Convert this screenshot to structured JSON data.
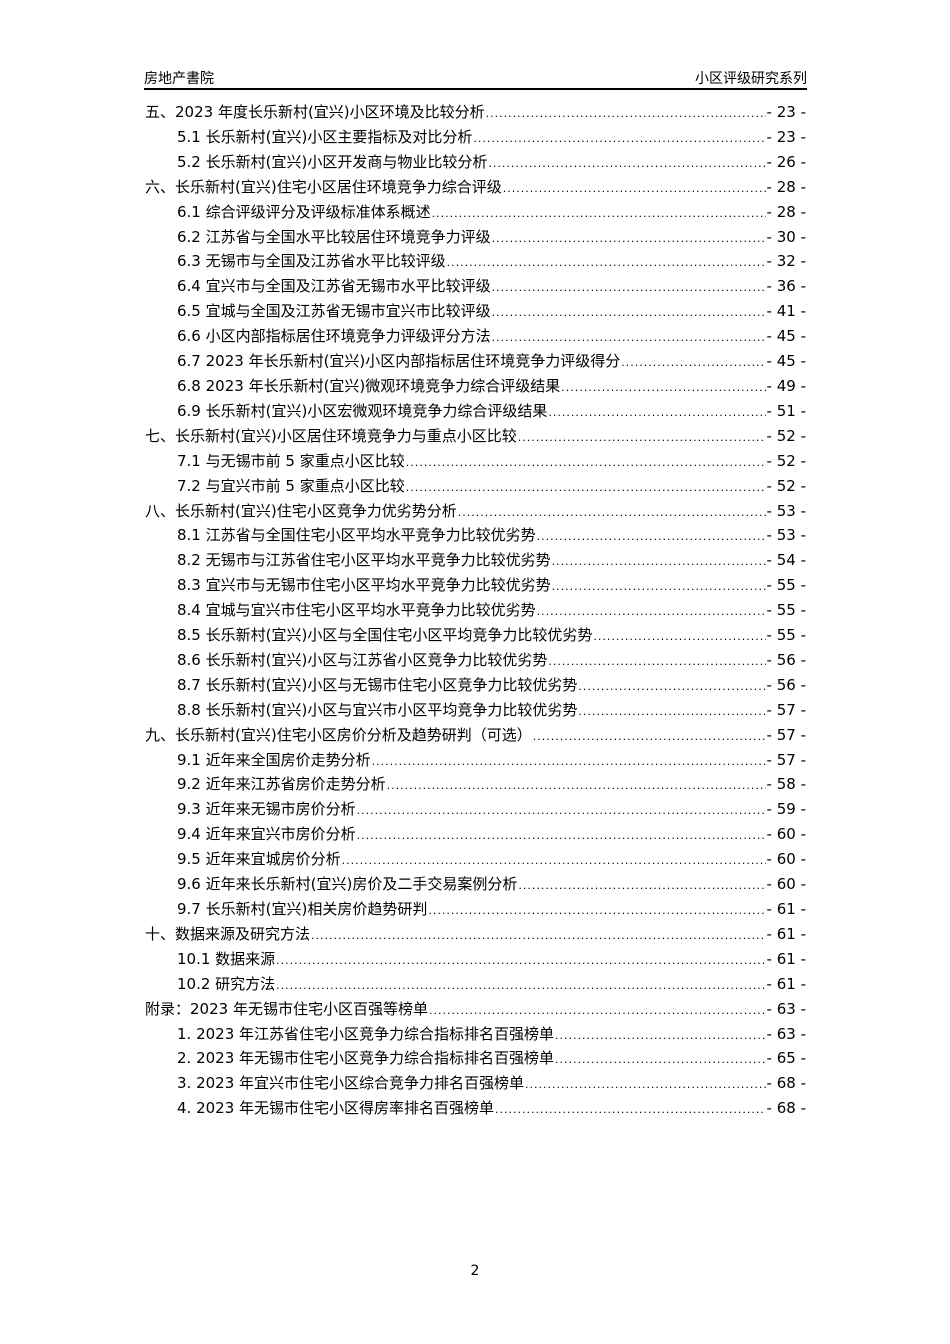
{
  "header": {
    "left": "房地产書院",
    "right": "小区评级研究系列"
  },
  "toc": [
    {
      "level": 1,
      "title": "五、2023 年度长乐新村(宜兴)小区环境及比较分析",
      "page": "- 23 -"
    },
    {
      "level": 2,
      "title": "5.1  长乐新村(宜兴)小区主要指标及对比分析",
      "page": "- 23 -"
    },
    {
      "level": 2,
      "title": "5.2  长乐新村(宜兴)小区开发商与物业比较分析",
      "page": "- 26 -"
    },
    {
      "level": 1,
      "title": "六、长乐新村(宜兴)住宅小区居住环境竞争力综合评级",
      "page": "- 28 -"
    },
    {
      "level": 2,
      "title": "6.1  综合评级评分及评级标准体系概述",
      "page": "- 28 -"
    },
    {
      "level": 2,
      "title": "6.2  江苏省与全国水平比较居住环境竞争力评级",
      "page": "- 30 -"
    },
    {
      "level": 2,
      "title": "6.3  无锡市与全国及江苏省水平比较评级",
      "page": "- 32 -"
    },
    {
      "level": 2,
      "title": "6.4  宜兴市与全国及江苏省无锡市水平比较评级",
      "page": "- 36 -"
    },
    {
      "level": 2,
      "title": "6.5  宜城与全国及江苏省无锡市宜兴市比较评级",
      "page": "- 41 -"
    },
    {
      "level": 2,
      "title": "6.6  小区内部指标居住环境竞争力评级评分方法",
      "page": "- 45 -"
    },
    {
      "level": 2,
      "title": "6.7  2023 年长乐新村(宜兴)小区内部指标居住环境竞争力评级得分",
      "page": "- 45 -"
    },
    {
      "level": 2,
      "title": "6.8  2023 年长乐新村(宜兴)微观环境竞争力综合评级结果",
      "page": "- 49 -"
    },
    {
      "level": 2,
      "title": "6.9  长乐新村(宜兴)小区宏微观环境竞争力综合评级结果",
      "page": "- 51 -"
    },
    {
      "level": 1,
      "title": "七、长乐新村(宜兴)小区居住环境竞争力与重点小区比较",
      "page": "- 52 -"
    },
    {
      "level": 2,
      "title": "7.1  与无锡市前 5 家重点小区比较",
      "page": "- 52 -"
    },
    {
      "level": 2,
      "title": "7.2  与宜兴市前 5 家重点小区比较",
      "page": "- 52 -"
    },
    {
      "level": 1,
      "title": "八、长乐新村(宜兴)住宅小区竞争力优劣势分析",
      "page": "- 53 -"
    },
    {
      "level": 2,
      "title": "8.1  江苏省与全国住宅小区平均水平竞争力比较优劣势",
      "page": "- 53 -"
    },
    {
      "level": 2,
      "title": "8.2  无锡市与江苏省住宅小区平均水平竞争力比较优劣势",
      "page": "- 54 -"
    },
    {
      "level": 2,
      "title": "8.3  宜兴市与无锡市住宅小区平均水平竞争力比较优劣势",
      "page": "- 55 -"
    },
    {
      "level": 2,
      "title": "8.4  宜城与宜兴市住宅小区平均水平竞争力比较优劣势",
      "page": "- 55 -"
    },
    {
      "level": 2,
      "title": "8.5  长乐新村(宜兴)小区与全国住宅小区平均竞争力比较优劣势",
      "page": "- 55 -"
    },
    {
      "level": 2,
      "title": "8.6  长乐新村(宜兴)小区与江苏省小区竞争力比较优劣势",
      "page": "- 56 -"
    },
    {
      "level": 2,
      "title": "8.7  长乐新村(宜兴)小区与无锡市住宅小区竞争力比较优劣势",
      "page": "- 56 -"
    },
    {
      "level": 2,
      "title": "8.8  长乐新村(宜兴)小区与宜兴市小区平均竞争力比较优劣势",
      "page": "- 57 -"
    },
    {
      "level": 1,
      "title": "九、长乐新村(宜兴)住宅小区房价分析及趋势研判（可选）",
      "page": "- 57 -"
    },
    {
      "level": 2,
      "title": "9.1  近年来全国房价走势分析",
      "page": "- 57 -"
    },
    {
      "level": 2,
      "title": "9.2  近年来江苏省房价走势分析",
      "page": "- 58 -"
    },
    {
      "level": 2,
      "title": "9.3  近年来无锡市房价分析",
      "page": "- 59 -"
    },
    {
      "level": 2,
      "title": "9.4  近年来宜兴市房价分析",
      "page": "- 60 -"
    },
    {
      "level": 2,
      "title": "9.5  近年来宜城房价分析",
      "page": "- 60 -"
    },
    {
      "level": 2,
      "title": "9.6  近年来长乐新村(宜兴)房价及二手交易案例分析",
      "page": "- 60 -"
    },
    {
      "level": 2,
      "title": "9.7  长乐新村(宜兴)相关房价趋势研判",
      "page": "- 61 -"
    },
    {
      "level": 1,
      "title": "十、数据来源及研究方法",
      "page": "- 61 -"
    },
    {
      "level": 2,
      "title": "10.1  数据来源",
      "page": "- 61 -"
    },
    {
      "level": 2,
      "title": "10.2  研究方法",
      "page": "- 61 -"
    },
    {
      "level": 1,
      "title": "附录：2023 年无锡市住宅小区百强等榜单",
      "page": "- 63 -"
    },
    {
      "level": 2,
      "title": "1.  2023 年江苏省住宅小区竞争力综合指标排名百强榜单",
      "page": "- 63 -"
    },
    {
      "level": 2,
      "title": "2.  2023 年无锡市住宅小区竞争力综合指标排名百强榜单",
      "page": "- 65 -"
    },
    {
      "level": 2,
      "title": "3.  2023 年宜兴市住宅小区综合竞争力排名百强榜单",
      "page": "- 68 -"
    },
    {
      "level": 2,
      "title": "4.  2023 年无锡市住宅小区得房率排名百强榜单",
      "page": "- 68 -"
    }
  ],
  "footer": {
    "page_number": "2"
  }
}
